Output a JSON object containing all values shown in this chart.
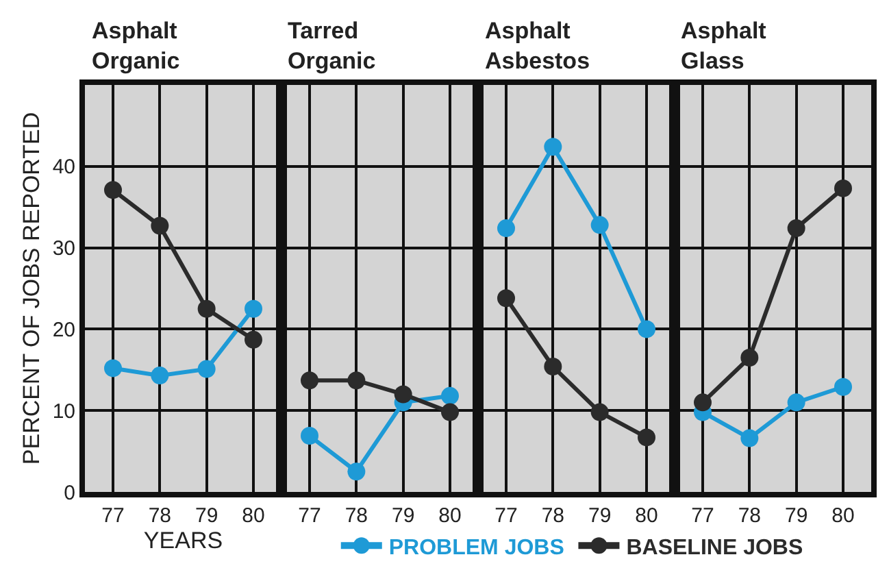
{
  "chart_data": [
    {
      "type": "line",
      "title": "Asphalt\nOrganic",
      "xlabel": "YEARS",
      "ylabel": "PERCENT OF JOBS REPORTED",
      "categories": [
        "77",
        "78",
        "79",
        "80"
      ],
      "series": [
        {
          "name": "PROBLEM JOBS",
          "color": "#1e9ad6",
          "values": [
            15.2,
            14.3,
            15.1,
            22.5
          ]
        },
        {
          "name": "BASELINE JOBS",
          "color": "#2b2b2b",
          "values": [
            37.1,
            32.7,
            22.5,
            18.7
          ]
        }
      ],
      "ylim": [
        0,
        50
      ],
      "yticks": [
        0,
        10,
        20,
        30,
        40
      ],
      "grid": true,
      "legend": "bottom",
      "marker": "circle",
      "line_style": "solid"
    },
    {
      "type": "line",
      "title": "Tarred\nOrganic",
      "categories": [
        "77",
        "78",
        "79",
        "80"
      ],
      "series": [
        {
          "color": "#1e9ad6",
          "values": [
            6.9,
            2.5,
            11.0,
            11.8
          ]
        },
        {
          "color": "#2b2b2b",
          "values": [
            13.7,
            13.7,
            12.0,
            9.8
          ]
        }
      ],
      "ylim": [
        0,
        50
      ],
      "yticks": [
        0,
        10,
        20,
        30,
        40
      ],
      "tick_labels": "x",
      "grid": true,
      "marker": "circle",
      "line_style": "solid"
    },
    {
      "type": "line",
      "title": "Asphalt\nAsbestos",
      "categories": [
        "77",
        "78",
        "79",
        "80"
      ],
      "series": [
        {
          "color": "#1e9ad6",
          "values": [
            32.4,
            42.4,
            32.8,
            20.0
          ]
        },
        {
          "color": "#2b2b2b",
          "values": [
            23.8,
            15.4,
            9.8,
            6.7
          ]
        }
      ],
      "ylim": [
        0,
        50
      ],
      "yticks": [
        0,
        10,
        20,
        30,
        40
      ],
      "tick_labels": "x",
      "grid": true,
      "marker": "circle",
      "line_style": "solid"
    },
    {
      "type": "line",
      "title": "Asphalt\nGlass",
      "categories": [
        "77",
        "78",
        "79",
        "80"
      ],
      "series": [
        {
          "color": "#1e9ad6",
          "values": [
            9.8,
            6.6,
            11.0,
            12.9
          ]
        },
        {
          "color": "#2b2b2b",
          "values": [
            11.0,
            16.5,
            32.4,
            37.3
          ]
        }
      ],
      "ylim": [
        0,
        50
      ],
      "yticks": [
        0,
        10,
        20,
        30,
        40
      ],
      "tick_labels": "x",
      "grid": true,
      "marker": "circle",
      "line_style": "solid"
    }
  ]
}
